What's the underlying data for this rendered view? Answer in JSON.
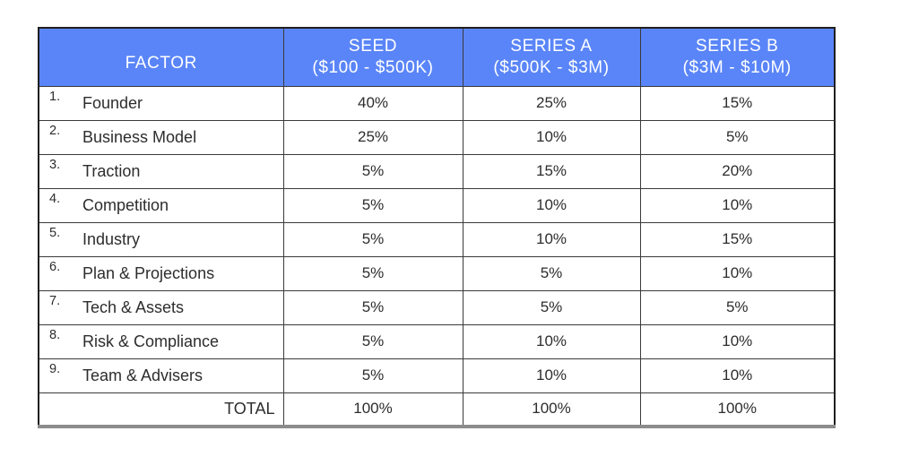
{
  "table": {
    "columns": [
      {
        "label": "FACTOR",
        "sublabel": ""
      },
      {
        "label": "SEED",
        "sublabel": "($100 - $500K)"
      },
      {
        "label": "SERIES A",
        "sublabel": "($500K - $3M)"
      },
      {
        "label": "SERIES B",
        "sublabel": "($3M - $10M)"
      }
    ],
    "rows": [
      {
        "num": "1.",
        "factor": "Founder",
        "values": [
          "40%",
          "25%",
          "15%"
        ]
      },
      {
        "num": "2.",
        "factor": "Business Model",
        "values": [
          "25%",
          "10%",
          "5%"
        ]
      },
      {
        "num": "3.",
        "factor": "Traction",
        "values": [
          "5%",
          "15%",
          "20%"
        ]
      },
      {
        "num": "4.",
        "factor": "Competition",
        "values": [
          "5%",
          "10%",
          "10%"
        ]
      },
      {
        "num": "5.",
        "factor": "Industry",
        "values": [
          "5%",
          "10%",
          "15%"
        ]
      },
      {
        "num": "6.",
        "factor": "Plan & Projections",
        "values": [
          "5%",
          "5%",
          "10%"
        ]
      },
      {
        "num": "7.",
        "factor": "Tech & Assets",
        "values": [
          "5%",
          "5%",
          "5%"
        ]
      },
      {
        "num": "8.",
        "factor": "Risk & Compliance",
        "values": [
          "5%",
          "10%",
          "10%"
        ]
      },
      {
        "num": "9.",
        "factor": "Team & Advisers",
        "values": [
          "5%",
          "10%",
          "10%"
        ]
      }
    ],
    "total": {
      "label": "TOTAL",
      "values": [
        "100%",
        "100%",
        "100%"
      ]
    }
  },
  "chart_data": {
    "type": "table",
    "title": "",
    "columns": [
      "FACTOR",
      "SEED ($100 - $500K)",
      "SERIES A ($500K - $3M)",
      "SERIES B ($3M - $10M)"
    ],
    "rows": [
      [
        "1. Founder",
        40,
        25,
        15
      ],
      [
        "2. Business Model",
        25,
        10,
        5
      ],
      [
        "3. Traction",
        5,
        15,
        20
      ],
      [
        "4. Competition",
        5,
        10,
        10
      ],
      [
        "5. Industry",
        5,
        10,
        15
      ],
      [
        "6. Plan & Projections",
        5,
        5,
        10
      ],
      [
        "7. Tech & Assets",
        5,
        5,
        5
      ],
      [
        "8. Risk & Compliance",
        5,
        10,
        10
      ],
      [
        "9. Team & Advisers",
        5,
        10,
        10
      ],
      [
        "TOTAL",
        100,
        100,
        100
      ]
    ],
    "value_unit": "%"
  },
  "colors": {
    "header_bg": "#5A85F8",
    "header_text": "#FFFFFF",
    "body_text": "#2D2D2D",
    "border": "#3A3A3A",
    "outer_border": "#1F1F1F",
    "bottom_border": "#8C8C8C"
  }
}
